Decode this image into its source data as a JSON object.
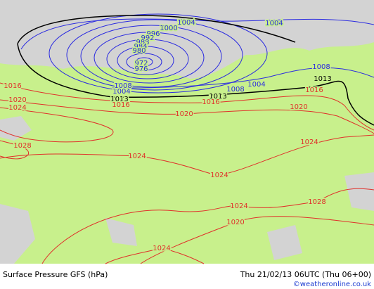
{
  "isobar_labels": [
    "1004",
    "1004",
    "1000",
    "996",
    "992",
    "988",
    "984",
    "980",
    "972",
    "976",
    "1008",
    "1004",
    "1008",
    "1004",
    "1008",
    "1013",
    "1013",
    "1013",
    "1016",
    "1016",
    "1016",
    "1016",
    "1020",
    "1024",
    "1020",
    "1020",
    "1028",
    "1024",
    "1024",
    "1024",
    "1028",
    "1024",
    "1020",
    "1024"
  ],
  "footer": {
    "title": "Surface Pressure GFS (hPa)",
    "valid_time": "Thu 21/02/13 06UTC  (Thu 06+00)",
    "credit": "©weatheronline.co.uk"
  }
}
